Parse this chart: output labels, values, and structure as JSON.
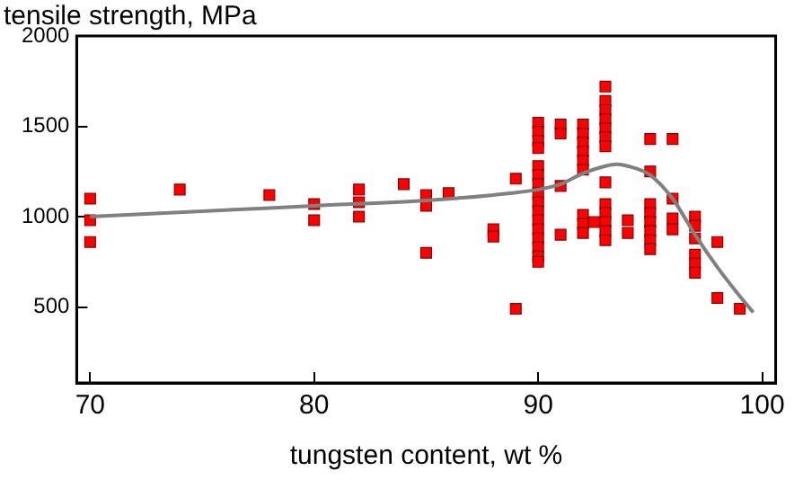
{
  "chart_data": {
    "type": "scatter",
    "xlabel": "tungsten content, wt %",
    "ylabel": "tensile strength, MPa",
    "xlim": [
      69.4,
      100.6
    ],
    "xticks": [
      70,
      80,
      90,
      100
    ],
    "ylim": [
      80,
      2000
    ],
    "yticks": [
      500,
      1000,
      1500,
      2000
    ],
    "grid": false,
    "legend": false,
    "marker": "square",
    "series": [
      {
        "color": "#ff0000",
        "x": [
          70,
          70,
          70,
          74,
          78,
          80,
          80,
          82,
          82,
          82,
          84,
          85,
          85,
          85,
          86,
          88,
          88,
          89,
          89,
          90,
          90,
          90,
          90,
          90,
          90,
          90,
          90,
          90,
          90,
          90,
          90,
          90,
          90,
          90,
          90,
          91,
          91,
          91,
          91,
          92,
          92,
          92,
          92,
          92,
          92,
          92,
          92,
          92,
          92.5,
          93,
          93,
          93,
          93,
          93,
          93,
          93,
          93,
          93,
          93,
          93,
          93,
          93,
          94,
          94,
          95,
          95,
          95,
          95,
          95,
          95,
          95,
          95,
          96,
          96,
          96,
          96,
          97,
          97,
          97,
          97,
          97,
          97,
          98,
          98,
          99
        ],
        "values": [
          1100,
          980,
          860,
          1150,
          1120,
          1070,
          980,
          1150,
          1080,
          1000,
          1180,
          1120,
          1060,
          800,
          1130,
          930,
          890,
          1210,
          490,
          1520,
          1470,
          1420,
          1380,
          1280,
          1230,
          1180,
          1130,
          1080,
          1030,
          980,
          930,
          880,
          830,
          780,
          750,
          1510,
          1460,
          1170,
          900,
          1510,
          1460,
          1410,
          1360,
          1310,
          1260,
          1010,
          960,
          910,
          970,
          1720,
          1640,
          1590,
          1540,
          1490,
          1440,
          1390,
          1190,
          1070,
          1020,
          970,
          920,
          870,
          980,
          910,
          1430,
          1250,
          1070,
          1020,
          970,
          920,
          870,
          820,
          1430,
          1100,
          990,
          930,
          1000,
          950,
          880,
          790,
          740,
          690,
          860,
          550,
          490
        ]
      },
      {
        "type": "line",
        "color": "#808080",
        "marker": "none",
        "line_style": "solid",
        "x": [
          70,
          75,
          80,
          85,
          88,
          90,
          91,
          92,
          93,
          93.5,
          94,
          95,
          96,
          97,
          98,
          99,
          99.6
        ],
        "values": [
          1000,
          1030,
          1060,
          1090,
          1120,
          1150,
          1180,
          1240,
          1280,
          1290,
          1280,
          1230,
          1100,
          900,
          720,
          560,
          470
        ]
      }
    ]
  }
}
